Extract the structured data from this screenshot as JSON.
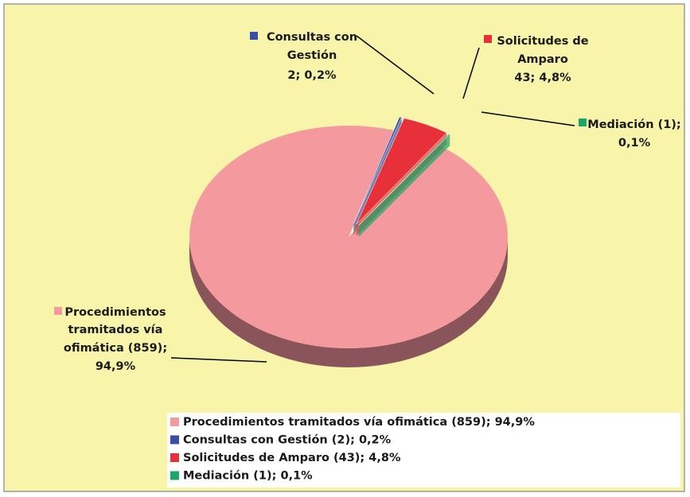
{
  "chart_data": {
    "type": "pie",
    "categories": [
      "Procedimientos tramitados  vía ofimática (859); 94,9%",
      "Consultas con Gestión (2); 0,2%",
      "Solicitudes de Amparo (43); 4,8%",
      "Mediación (1); 0,1%"
    ],
    "values": [
      859,
      2,
      43,
      1
    ],
    "value_labels": [
      [
        "Procedimientos",
        "tramitados  vía",
        "ofimática (859);",
        "94,9%"
      ],
      [
        "Consultas con",
        "Gestión",
        "2; 0,2%"
      ],
      [
        "Solicitudes de",
        "Amparo",
        "43; 4,8%"
      ],
      [
        "Mediación (1);",
        "0,1%"
      ]
    ],
    "colors": [
      "#f4999e",
      "#3a4ea8",
      "#e8303a",
      "#17a86a"
    ],
    "legend": "bottom"
  }
}
